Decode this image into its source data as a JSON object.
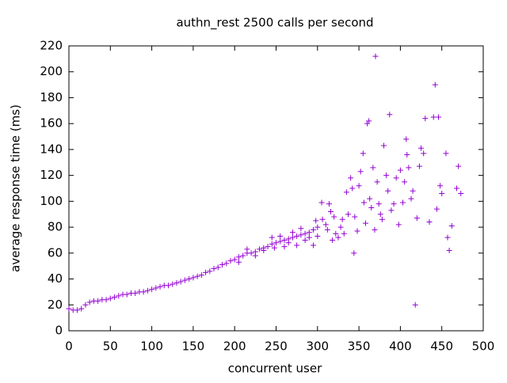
{
  "chart_data": {
    "type": "scatter",
    "title": "authn_rest 2500 calls per second",
    "x_label": "concurrent user",
    "y_label": "average response time (ms)",
    "color": "#9400d3",
    "x": [
      0,
      5,
      10,
      15,
      20,
      25,
      30,
      35,
      40,
      45,
      50,
      55,
      60,
      65,
      70,
      75,
      80,
      85,
      90,
      95,
      100,
      105,
      110,
      115,
      120,
      125,
      130,
      135,
      140,
      145,
      150,
      155,
      160,
      165,
      170,
      175,
      180,
      185,
      190,
      195,
      200,
      205,
      210,
      215,
      220,
      225,
      230,
      235,
      240,
      245,
      250,
      255,
      260,
      265,
      270,
      275,
      280,
      285,
      290,
      295,
      300,
      205,
      215,
      225,
      235,
      245,
      248,
      255,
      260,
      265,
      270,
      275,
      280,
      285,
      290,
      295,
      298,
      300,
      305,
      306,
      310,
      312,
      314,
      316,
      318,
      320,
      322,
      325,
      328,
      330,
      332,
      335,
      337,
      340,
      342,
      344,
      345,
      348,
      350,
      352,
      355,
      356,
      358,
      360,
      362,
      363,
      365,
      367,
      369,
      370,
      372,
      374,
      376,
      378,
      380,
      383,
      385,
      387,
      389,
      392,
      395,
      398,
      400,
      403,
      405,
      407,
      408,
      410,
      413,
      415,
      418,
      420,
      423,
      425,
      428,
      430,
      435,
      440,
      442,
      444,
      446,
      448,
      450,
      455,
      457,
      459,
      462,
      468,
      470,
      473
    ],
    "values": [
      17,
      16,
      16,
      17,
      20,
      22,
      23,
      23,
      24,
      24,
      25,
      26,
      27,
      28,
      28,
      29,
      29,
      30,
      30,
      31,
      32,
      33,
      34,
      35,
      35,
      36,
      37,
      38,
      39,
      40,
      41,
      42,
      43,
      45,
      46,
      48,
      49,
      51,
      52,
      54,
      55,
      57,
      58,
      60,
      60,
      61,
      63,
      64,
      65,
      67,
      68,
      69,
      70,
      71,
      72,
      73,
      74,
      75,
      76,
      78,
      80,
      53,
      63,
      58,
      62,
      72,
      64,
      73,
      65,
      68,
      76,
      66,
      79,
      70,
      72,
      66,
      85,
      73,
      99,
      86,
      82,
      78,
      98,
      92,
      70,
      88,
      75,
      72,
      80,
      86,
      75,
      107,
      90,
      118,
      110,
      60,
      88,
      77,
      112,
      123,
      137,
      99,
      83,
      160,
      162,
      102,
      95,
      126,
      78,
      212,
      115,
      98,
      90,
      86,
      143,
      120,
      108,
      167,
      93,
      98,
      118,
      82,
      124,
      99,
      115,
      148,
      136,
      126,
      102,
      108,
      20,
      87,
      127,
      141,
      137,
      164,
      84,
      165,
      190,
      94,
      165,
      112,
      106,
      137,
      72,
      62,
      81,
      110,
      127,
      106
    ],
    "xlim": [
      0,
      500
    ],
    "ylim": [
      0,
      220
    ],
    "xticks": [
      0,
      50,
      100,
      150,
      200,
      250,
      300,
      350,
      400,
      450,
      500
    ],
    "yticks": [
      0,
      20,
      40,
      60,
      80,
      100,
      120,
      140,
      160,
      180,
      200,
      220
    ]
  }
}
